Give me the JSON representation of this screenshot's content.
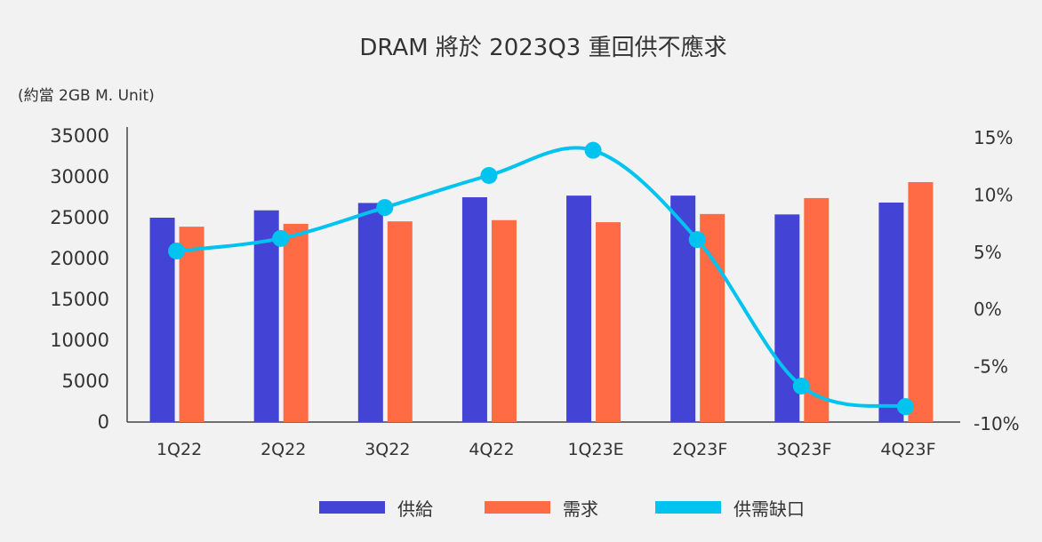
{
  "chart_data": {
    "type": "bar+line",
    "title": "DRAM 將於 2023Q3 重回供不應求",
    "ylabel": "(約當 2GB M. Unit)",
    "categories": [
      "1Q22",
      "2Q22",
      "3Q22",
      "4Q22",
      "1Q23E",
      "2Q23F",
      "3Q23F",
      "4Q23F"
    ],
    "ylim": [
      0,
      35000
    ],
    "yticks": [
      "0",
      "5000",
      "10000",
      "15000",
      "20000",
      "25000",
      "30000",
      "35000"
    ],
    "y2lim": [
      -10,
      15
    ],
    "y2ticks": [
      "-10%",
      "-5%",
      "0%",
      "5%",
      "10%",
      "15%"
    ],
    "grid": false,
    "legend_position": "bottom",
    "series": [
      {
        "name": "供給",
        "type": "bar",
        "axis": "left",
        "color": "#4343d6",
        "values": [
          25000,
          25900,
          26800,
          27500,
          27700,
          27700,
          25400,
          26850
        ]
      },
      {
        "name": "需求",
        "type": "bar",
        "axis": "left",
        "color": "#ff6b45",
        "values": [
          23900,
          24250,
          24550,
          24700,
          24450,
          25450,
          27400,
          29350
        ]
      },
      {
        "name": "供需缺口",
        "type": "line",
        "axis": "right",
        "unit": "%",
        "color": "#00c3f0",
        "values": [
          5.1,
          6.2,
          8.9,
          11.7,
          13.9,
          6.1,
          -6.7,
          -8.5
        ]
      }
    ]
  }
}
